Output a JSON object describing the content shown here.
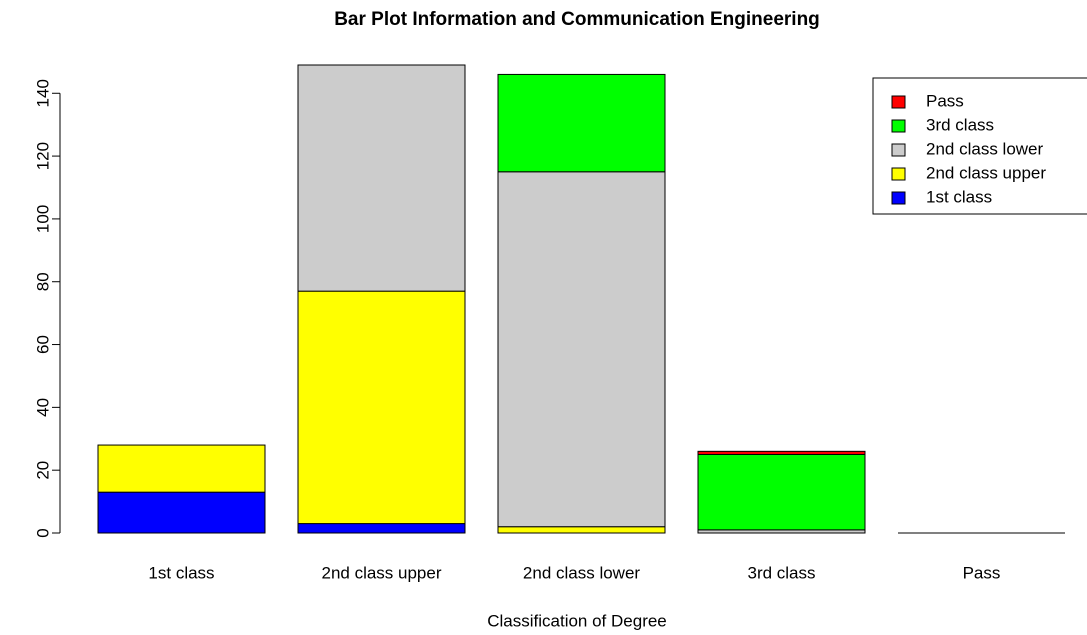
{
  "chart_data": {
    "type": "stacked_bar",
    "title": "Bar Plot Information and Communication Engineering",
    "x_label": "Classification of Degree",
    "categories": [
      "1st class",
      "2nd class upper",
      "2nd class lower",
      "3rd class",
      "Pass"
    ],
    "series": [
      {
        "name": "1st class",
        "color": "#0000ff",
        "values": [
          13,
          3,
          0,
          0,
          0
        ]
      },
      {
        "name": "2nd class upper",
        "color": "#ffff00",
        "values": [
          15,
          74,
          2,
          0,
          0
        ]
      },
      {
        "name": "2nd class lower",
        "color": "#cccccc",
        "values": [
          0,
          72,
          113,
          1,
          0
        ]
      },
      {
        "name": "3rd class",
        "color": "#00ff00",
        "values": [
          0,
          0,
          31,
          24,
          0
        ]
      },
      {
        "name": "Pass",
        "color": "#ff0000",
        "values": [
          0,
          0,
          0,
          1,
          0
        ]
      }
    ],
    "ylim": [
      0,
      149
    ],
    "yticks": [
      0,
      20,
      40,
      60,
      80,
      100,
      120,
      140
    ],
    "legend": "top-right"
  }
}
